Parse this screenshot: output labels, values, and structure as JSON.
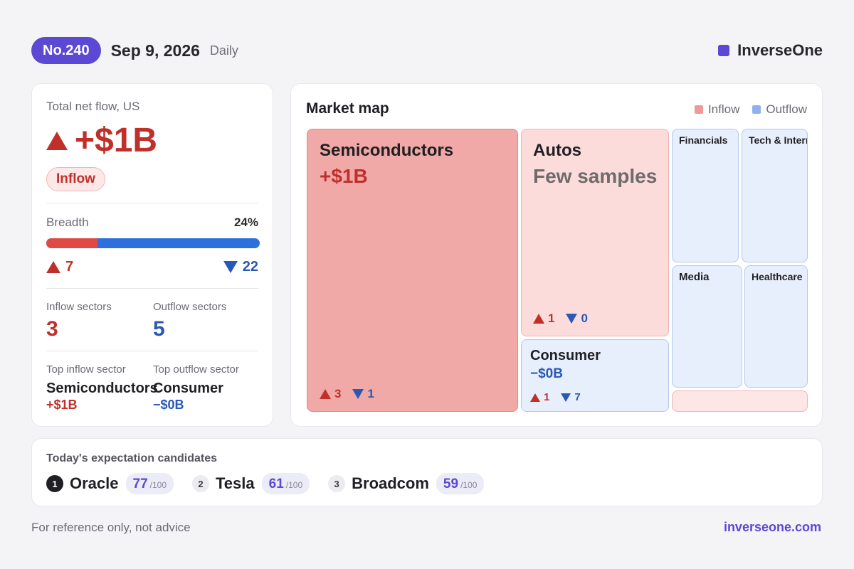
{
  "header": {
    "issue": "No.240",
    "date": "Sep 9, 2026",
    "frequency": "Daily",
    "brand": "InverseOne",
    "brand_color": "#5b48d3"
  },
  "summary": {
    "total_label": "Total net flow, US",
    "total_value": "+$1B",
    "direction_badge": "Inflow",
    "breadth_label": "Breadth",
    "breadth_percent": "24%",
    "breadth_fraction": 0.24,
    "up_count": "7",
    "down_count": "22",
    "inflow_sectors_label": "Inflow sectors",
    "inflow_sectors_value": "3",
    "outflow_sectors_label": "Outflow sectors",
    "outflow_sectors_value": "5",
    "top_inflow_label": "Top inflow sector",
    "top_inflow_name": "Semiconductors",
    "top_inflow_value": "+$1B",
    "top_outflow_label": "Top outflow sector",
    "top_outflow_name": "Consumer",
    "top_outflow_value": "−$0B"
  },
  "market_map": {
    "title": "Market map",
    "legend": {
      "inflow": "Inflow",
      "outflow": "Outflow",
      "inflow_color": "#ec9b98",
      "outflow_color": "#8fb2ec"
    },
    "tiles": {
      "semiconductors": {
        "name": "Semiconductors",
        "value": "+$1B",
        "up": "3",
        "down": "1"
      },
      "autos": {
        "name": "Autos",
        "value": "Few samples",
        "up": "1",
        "down": "0"
      },
      "consumer": {
        "name": "Consumer",
        "value": "−$0B",
        "up": "1",
        "down": "7"
      },
      "financials": {
        "name": "Financials"
      },
      "tech": {
        "name": "Tech & Internet"
      },
      "media": {
        "name": "Media"
      },
      "healthcare": {
        "name": "Healthcare"
      }
    }
  },
  "candidates": {
    "title": "Today's expectation candidates",
    "items": [
      {
        "rank": "1",
        "name": "Oracle",
        "score": "77",
        "out_of": "/100"
      },
      {
        "rank": "2",
        "name": "Tesla",
        "score": "61",
        "out_of": "/100"
      },
      {
        "rank": "3",
        "name": "Broadcom",
        "score": "59",
        "out_of": "/100"
      }
    ]
  },
  "footer": {
    "disclaimer": "For reference only, not advice",
    "site": "inverseone.com"
  }
}
